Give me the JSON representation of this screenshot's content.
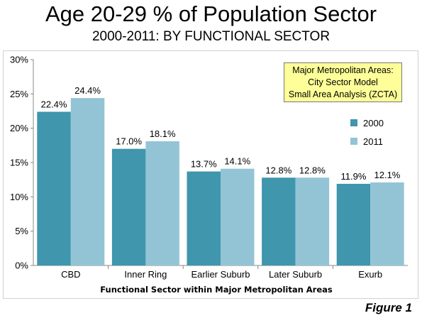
{
  "title": "Age 20-29 % of Population Sector",
  "subtitle": "2000-2011: BY FUNCTIONAL SECTOR",
  "note": {
    "lines": [
      "Major Metropolitan Areas:",
      "City Sector Model",
      "Small Area Analysis (ZCTA)"
    ]
  },
  "figure_label": "Figure 1",
  "chart_data": {
    "type": "bar",
    "categories": [
      "CBD",
      "Inner Ring",
      "Earlier Suburb",
      "Later Suburb",
      "Exurb"
    ],
    "series": [
      {
        "name": "2000",
        "values": [
          22.4,
          17.0,
          13.7,
          12.8,
          11.9
        ],
        "labels": [
          "22.4%",
          "17.0%",
          "13.7%",
          "12.8%",
          "11.9%"
        ],
        "color": "#3f96ad"
      },
      {
        "name": "2011",
        "values": [
          24.4,
          18.1,
          14.1,
          12.8,
          12.1
        ],
        "labels": [
          "24.4%",
          "18.1%",
          "14.1%",
          "12.8%",
          "12.1%"
        ],
        "color": "#93c4d5"
      }
    ],
    "xlabel": "Functional Sector within Major Metropolitan Areas",
    "ylabel": "",
    "ylim": [
      0,
      30
    ],
    "yticks": [
      "0%",
      "5%",
      "10%",
      "15%",
      "20%",
      "25%",
      "30%"
    ],
    "grid": false,
    "legend_position": "right"
  }
}
